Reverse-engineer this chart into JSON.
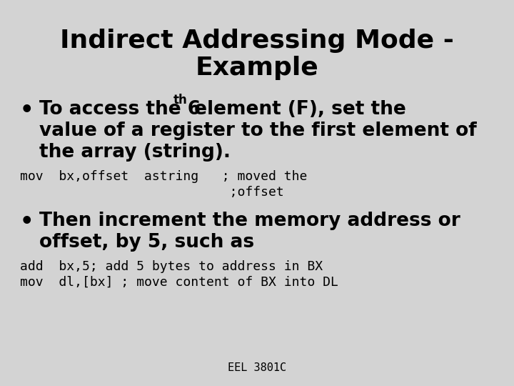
{
  "title_line1": "Indirect Addressing Mode -",
  "title_line2": "Example",
  "bg_color": "#d3d3d3",
  "title_fontsize": 26,
  "title_color": "#000000",
  "bullet_fontsize": 19,
  "code_fontsize": 13,
  "footer_fontsize": 11,
  "text_color": "#000000",
  "code_color": "#000000",
  "bullet1_part1": "To access the 6",
  "bullet1_sup": "th",
  "bullet1_part2": " element (F), set the",
  "bullet1_line2": "value of a register to the first element of",
  "bullet1_line3": "the array (string).",
  "code1_line1": "mov  bx,offset  astring   ; moved the",
  "code1_line2": "                           ;offset",
  "bullet2_line1": "Then increment the memory address or",
  "bullet2_line2": "offset, by 5, such as",
  "code2_line1": "add  bx,5; add 5 bytes to address in BX",
  "code2_line2": "mov  dl,[bx] ; move content of BX into DL",
  "footer": "EEL 3801C"
}
